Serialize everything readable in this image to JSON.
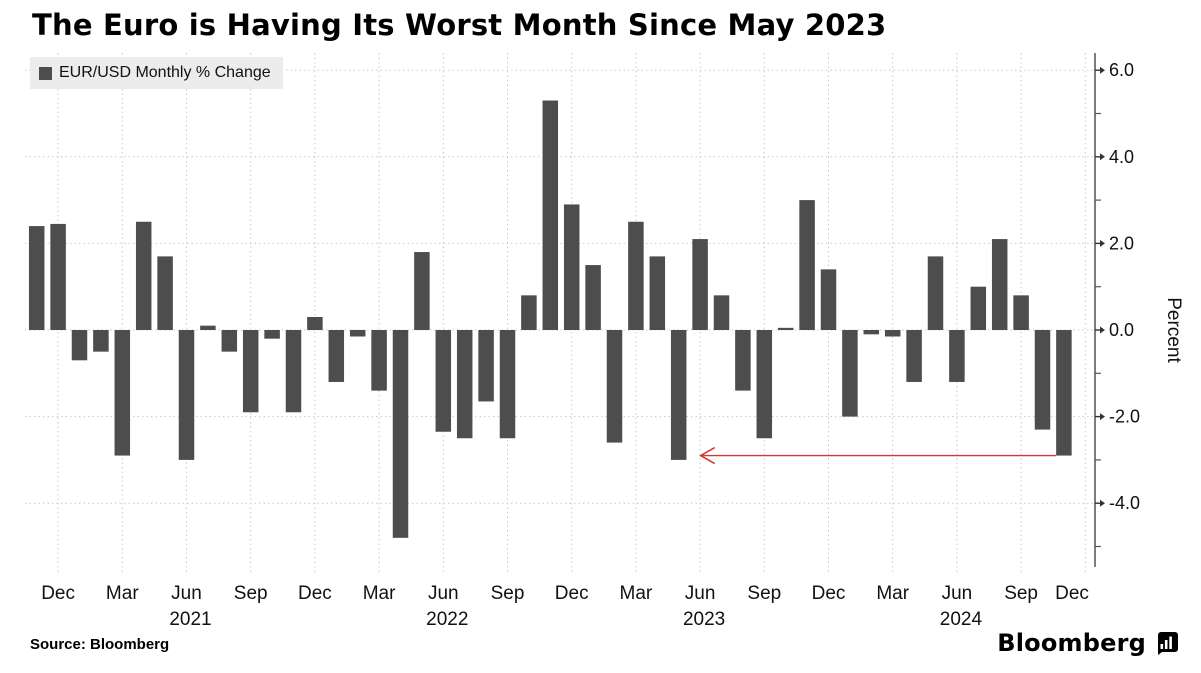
{
  "title": "The Euro is Having Its Worst Month Since May 2023",
  "legend": {
    "label": "EUR/USD Monthly % Change",
    "swatch_color": "#4d4d4d",
    "background": "#ececec"
  },
  "source_label": "Source: Bloomberg",
  "brand": {
    "name": "Bloomberg",
    "icon": "bloomberg-bars-icon"
  },
  "y_axis": {
    "label": "Percent",
    "tick_labels": [
      "6.0",
      "4.0",
      "2.0",
      "0.0",
      "-2.0",
      "-4.0"
    ],
    "tick_values": [
      6,
      4,
      2,
      0,
      -2,
      -4
    ],
    "minor_tick_values": [
      5,
      3,
      1,
      -1,
      -3,
      -5
    ],
    "range": [
      -5.5,
      6.4
    ],
    "grid": "dotted"
  },
  "x_axis": {
    "ticks": [
      {
        "month": "Dec 2020",
        "label": "Dec"
      },
      {
        "month": "Mar 2021",
        "label": "Mar"
      },
      {
        "month": "Jun 2021",
        "label": "Jun",
        "year": "2021"
      },
      {
        "month": "Sep 2021",
        "label": "Sep"
      },
      {
        "month": "Dec 2021",
        "label": "Dec"
      },
      {
        "month": "Mar 2022",
        "label": "Mar"
      },
      {
        "month": "Jun 2022",
        "label": "Jun",
        "year": "2022"
      },
      {
        "month": "Sep 2022",
        "label": "Sep"
      },
      {
        "month": "Dec 2022",
        "label": "Dec"
      },
      {
        "month": "Mar 2023",
        "label": "Mar"
      },
      {
        "month": "Jun 2023",
        "label": "Jun",
        "year": "2023"
      },
      {
        "month": "Sep 2023",
        "label": "Sep"
      },
      {
        "month": "Dec 2023",
        "label": "Dec"
      },
      {
        "month": "Mar 2024",
        "label": "Mar"
      },
      {
        "month": "Jun 2024",
        "label": "Jun",
        "year": "2024"
      },
      {
        "month": "Sep 2024",
        "label": "Sep"
      },
      {
        "month": "Dec 2024",
        "label": "Dec"
      }
    ]
  },
  "annotation": {
    "type": "arrow",
    "color": "#cf3b32",
    "from_month": "Nov 2024",
    "points_to_month": "May 2023",
    "level": -2.9
  },
  "chart_data": {
    "type": "bar",
    "title": "The Euro is Having Its Worst Month Since May 2023",
    "series_name": "EUR/USD Monthly % Change",
    "ylabel": "Percent",
    "ylim": [
      -5.5,
      6.4
    ],
    "bar_color": "#4d4d4d",
    "x": [
      "Nov 2020",
      "Dec 2020",
      "Jan 2021",
      "Feb 2021",
      "Mar 2021",
      "Apr 2021",
      "May 2021",
      "Jun 2021",
      "Jul 2021",
      "Aug 2021",
      "Sep 2021",
      "Oct 2021",
      "Nov 2021",
      "Dec 2021",
      "Jan 2022",
      "Feb 2022",
      "Mar 2022",
      "Apr 2022",
      "May 2022",
      "Jun 2022",
      "Jul 2022",
      "Aug 2022",
      "Sep 2022",
      "Oct 2022",
      "Nov 2022",
      "Dec 2022",
      "Jan 2023",
      "Feb 2023",
      "Mar 2023",
      "Apr 2023",
      "May 2023",
      "Jun 2023",
      "Jul 2023",
      "Aug 2023",
      "Sep 2023",
      "Oct 2023",
      "Nov 2023",
      "Dec 2023",
      "Jan 2024",
      "Feb 2024",
      "Mar 2024",
      "Apr 2024",
      "May 2024",
      "Jun 2024",
      "Jul 2024",
      "Aug 2024",
      "Sep 2024",
      "Oct 2024",
      "Nov 2024"
    ],
    "values": [
      2.4,
      2.45,
      -0.7,
      -0.5,
      -2.9,
      2.5,
      1.7,
      -3.0,
      0.1,
      -0.5,
      -1.9,
      -0.2,
      -1.9,
      0.3,
      -1.2,
      -0.15,
      -1.4,
      -4.8,
      1.8,
      -2.35,
      -2.5,
      -1.65,
      -2.5,
      0.8,
      5.3,
      2.9,
      1.5,
      -2.6,
      2.5,
      1.7,
      -3.0,
      2.1,
      0.8,
      -1.4,
      -2.5,
      0.05,
      3.0,
      1.4,
      -2.0,
      -0.1,
      -0.15,
      -1.2,
      1.7,
      -1.2,
      1.0,
      2.1,
      0.8,
      -2.3,
      -2.9
    ]
  }
}
